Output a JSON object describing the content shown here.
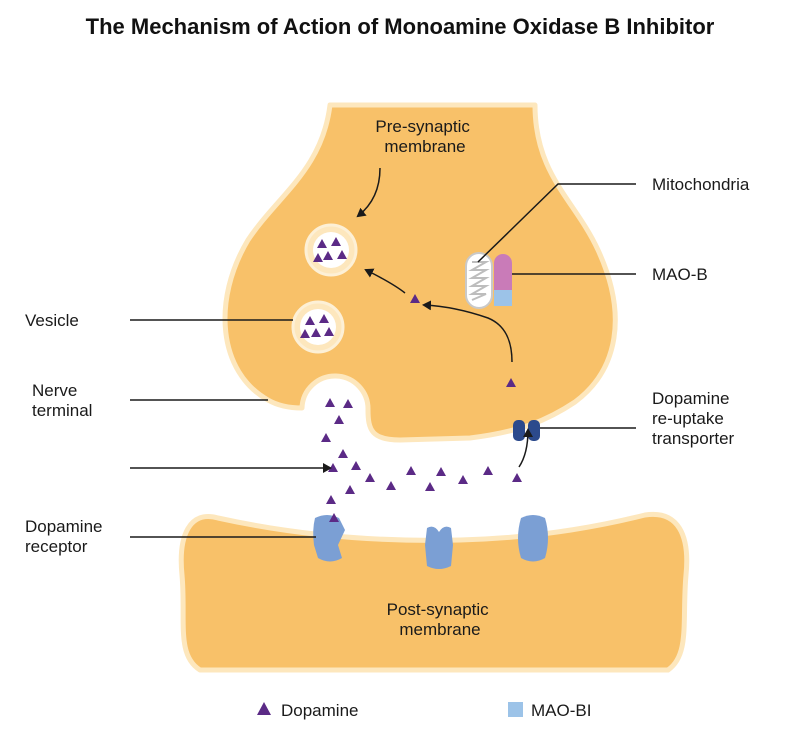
{
  "title": "The Mechanism of Action of Monoamine Oxidase B Inhibitor",
  "labels": {
    "pre_synaptic": [
      "Pre-synaptic",
      "membrane"
    ],
    "post_synaptic": [
      "Post-synaptic",
      "membrane"
    ],
    "mitochondria": "Mitochondria",
    "mao_b": "MAO-B",
    "vesicle": "Vesicle",
    "nerve_terminal": [
      "Nerve",
      "terminal"
    ],
    "reuptake_transporter": [
      "Dopamine",
      "re-uptake",
      "transporter"
    ],
    "dopamine_receptor": [
      "Dopamine",
      "receptor"
    ]
  },
  "legend": [
    {
      "label": "Dopamine",
      "symbol": "triangle",
      "color": "#5b2a86"
    },
    {
      "label": "MAO-BI",
      "symbol": "square",
      "color": "#9cc3e8"
    }
  ],
  "colors": {
    "terminal_fill": "#f8c169",
    "terminal_outline": "#fde7bd",
    "dopamine": "#5b2a86",
    "mao_b": "#c97bb8",
    "mao_bi": "#9cc3e8",
    "receptor": "#7b9fd4",
    "transporter": "#2c4a8c"
  }
}
